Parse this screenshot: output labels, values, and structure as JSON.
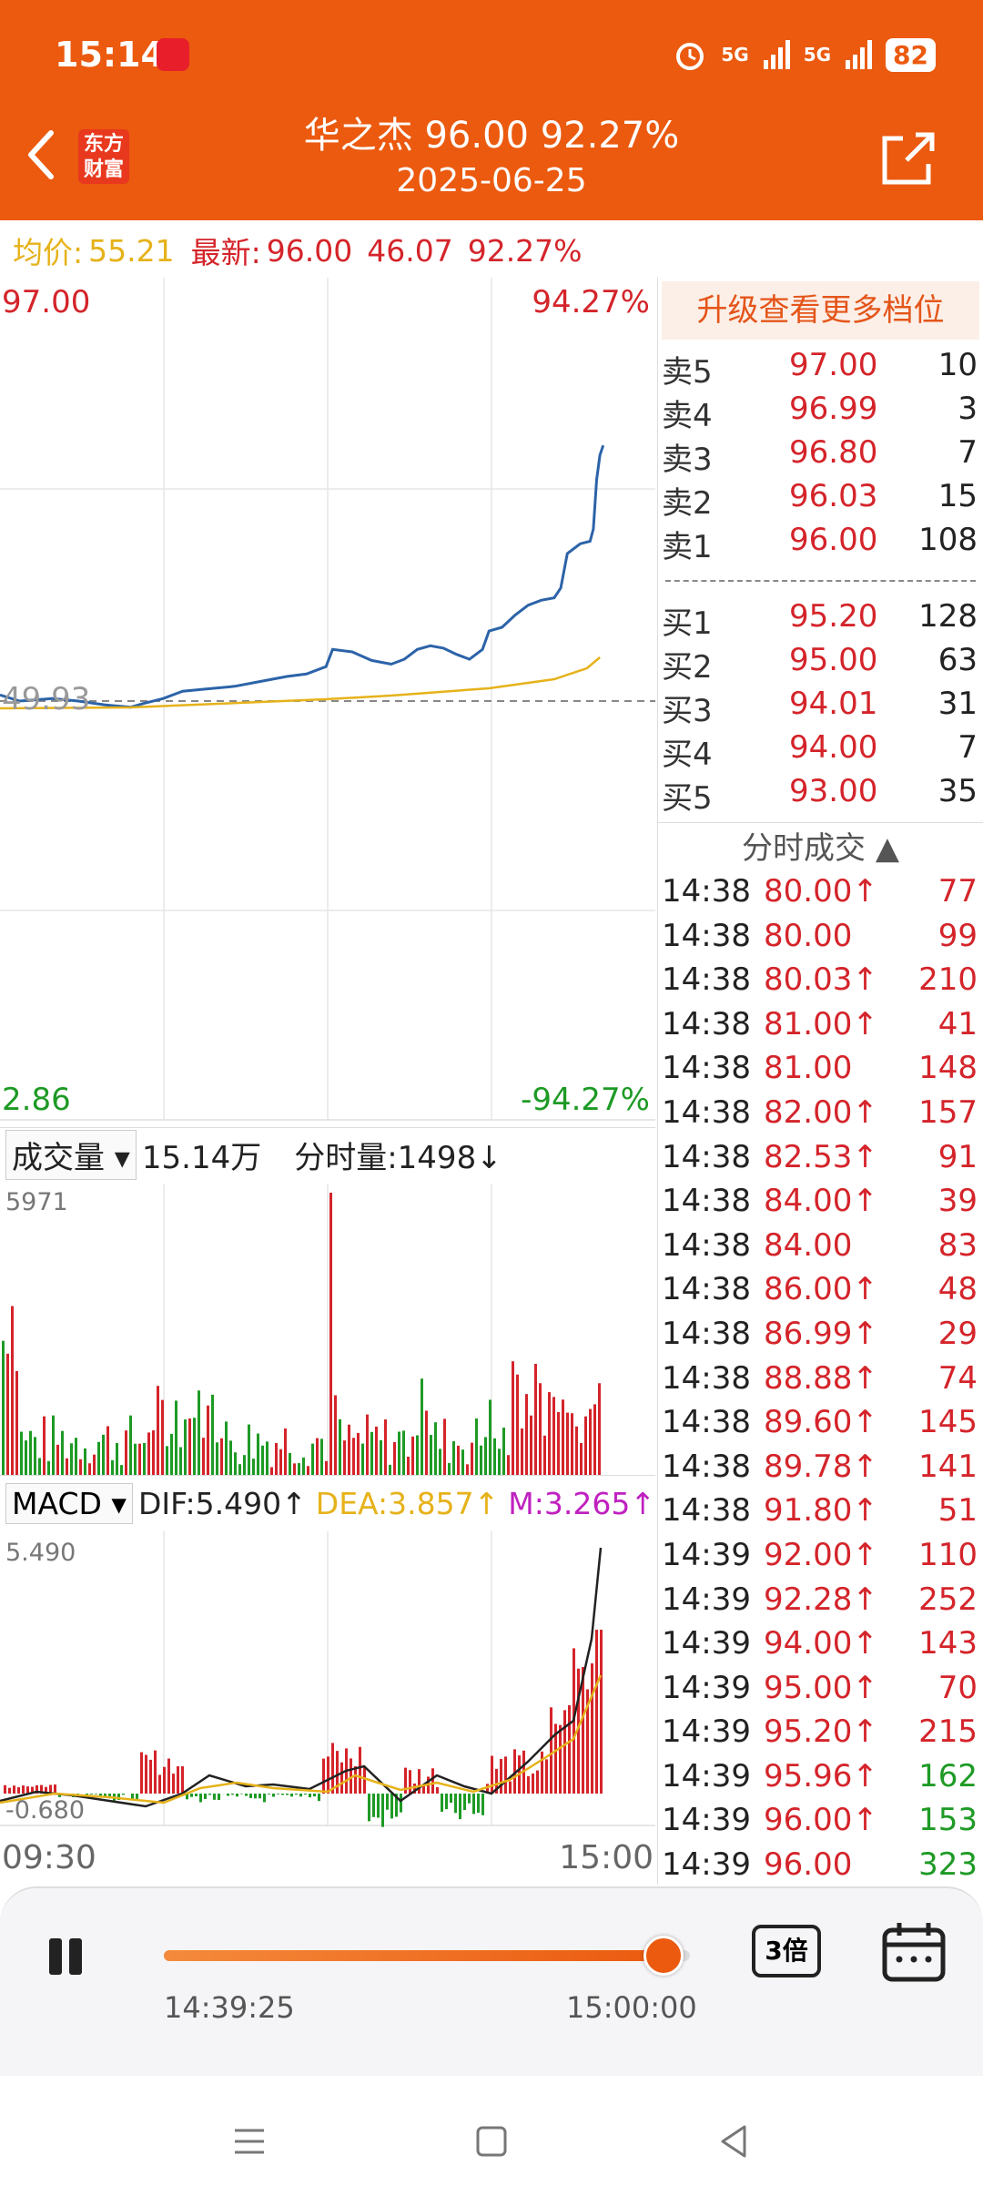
{
  "status": {
    "time": "15:14",
    "net1": "5G",
    "net2": "5G",
    "battery": "82"
  },
  "header": {
    "title": "华之杰  96.00  92.27%",
    "date": "2025-06-25",
    "logo_line1": "东方",
    "logo_line2": "财富"
  },
  "info": {
    "avg_label": "均价:",
    "avg_value": "55.21",
    "latest_label": "最新:",
    "latest_price": "96.00",
    "latest_change": "46.07",
    "latest_pct": "92.27%"
  },
  "price_chart": {
    "top_price": "97.00",
    "top_pct": "94.27%",
    "bottom_price": "2.86",
    "bottom_pct": "-94.27%",
    "base_price": "49.93"
  },
  "volume": {
    "selector": "成交量",
    "total": "15.14万",
    "tick_label": "分时量:1498↓",
    "max": "5971"
  },
  "macd": {
    "selector": "MACD",
    "dif": "DIF:5.490↑",
    "dea": "DEA:3.857↑",
    "m": "M:3.265↑",
    "max": "5.490",
    "min": "-0.680"
  },
  "time_axis": {
    "start": "09:30",
    "end": "15:00"
  },
  "orderbook": {
    "upgrade": "升级查看更多档位",
    "asks": [
      {
        "label": "卖5",
        "price": "97.00",
        "qty": "10"
      },
      {
        "label": "卖4",
        "price": "96.99",
        "qty": "3"
      },
      {
        "label": "卖3",
        "price": "96.80",
        "qty": "7"
      },
      {
        "label": "卖2",
        "price": "96.03",
        "qty": "15"
      },
      {
        "label": "卖1",
        "price": "96.00",
        "qty": "108"
      }
    ],
    "bids": [
      {
        "label": "买1",
        "price": "95.20",
        "qty": "128"
      },
      {
        "label": "买2",
        "price": "95.00",
        "qty": "63"
      },
      {
        "label": "买3",
        "price": "94.01",
        "qty": "31"
      },
      {
        "label": "买4",
        "price": "94.00",
        "qty": "7"
      },
      {
        "label": "买5",
        "price": "93.00",
        "qty": "35"
      }
    ]
  },
  "trades": {
    "title": "分时成交 ▲",
    "rows": [
      {
        "time": "14:38",
        "price": "80.00↑",
        "vol": "77",
        "color": "#D4242A"
      },
      {
        "time": "14:38",
        "price": "80.00",
        "vol": "99",
        "color": "#D4242A"
      },
      {
        "time": "14:38",
        "price": "80.03↑",
        "vol": "210",
        "color": "#D4242A"
      },
      {
        "time": "14:38",
        "price": "81.00↑",
        "vol": "41",
        "color": "#D4242A"
      },
      {
        "time": "14:38",
        "price": "81.00",
        "vol": "148",
        "color": "#D4242A"
      },
      {
        "time": "14:38",
        "price": "82.00↑",
        "vol": "157",
        "color": "#D4242A"
      },
      {
        "time": "14:38",
        "price": "82.53↑",
        "vol": "91",
        "color": "#D4242A"
      },
      {
        "time": "14:38",
        "price": "84.00↑",
        "vol": "39",
        "color": "#D4242A"
      },
      {
        "time": "14:38",
        "price": "84.00",
        "vol": "83",
        "color": "#D4242A"
      },
      {
        "time": "14:38",
        "price": "86.00↑",
        "vol": "48",
        "color": "#D4242A"
      },
      {
        "time": "14:38",
        "price": "86.99↑",
        "vol": "29",
        "color": "#D4242A"
      },
      {
        "time": "14:38",
        "price": "88.88↑",
        "vol": "74",
        "color": "#D4242A"
      },
      {
        "time": "14:38",
        "price": "89.60↑",
        "vol": "145",
        "color": "#D4242A"
      },
      {
        "time": "14:38",
        "price": "89.78↑",
        "vol": "141",
        "color": "#D4242A"
      },
      {
        "time": "14:38",
        "price": "91.80↑",
        "vol": "51",
        "color": "#D4242A"
      },
      {
        "time": "14:39",
        "price": "92.00↑",
        "vol": "110",
        "color": "#D4242A"
      },
      {
        "time": "14:39",
        "price": "92.28↑",
        "vol": "252",
        "color": "#D4242A"
      },
      {
        "time": "14:39",
        "price": "94.00↑",
        "vol": "143",
        "color": "#D4242A"
      },
      {
        "time": "14:39",
        "price": "95.00↑",
        "vol": "70",
        "color": "#D4242A"
      },
      {
        "time": "14:39",
        "price": "95.20↑",
        "vol": "215",
        "color": "#D4242A"
      },
      {
        "time": "14:39",
        "price": "95.96↑",
        "vol": "162",
        "color": "#1E9A25"
      },
      {
        "time": "14:39",
        "price": "96.00↑",
        "vol": "153",
        "color": "#1E9A25"
      },
      {
        "time": "14:39",
        "price": "96.00",
        "vol": "323",
        "color": "#1E9A25"
      }
    ]
  },
  "player": {
    "current": "14:39:25",
    "end": "15:00:00",
    "speed": "3倍",
    "progress": 0.95
  },
  "colors": {
    "accent": "#EB5A0F",
    "up": "#D4242A",
    "down": "#1E9A25",
    "avg_line": "#E6B21A",
    "price_line": "#2C63A8"
  }
}
